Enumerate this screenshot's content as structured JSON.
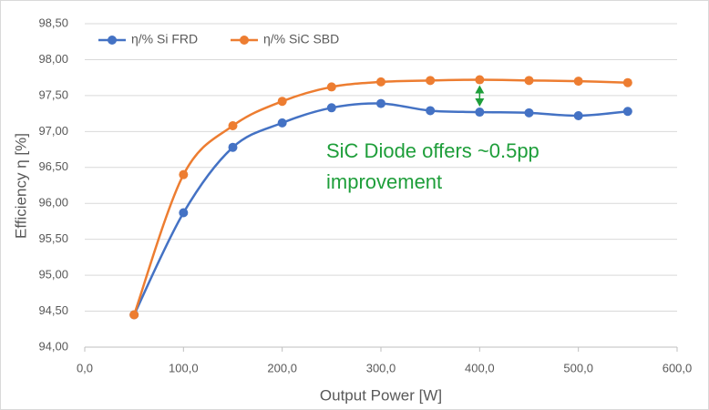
{
  "chart_data": {
    "type": "line",
    "x_label": "Output Power [W]",
    "y_label": "Efficiency η [%]",
    "x": [
      50,
      100,
      150,
      200,
      250,
      300,
      350,
      400,
      450,
      500,
      550
    ],
    "series": [
      {
        "name": "η/% Si FRD",
        "color": "#4472c4",
        "values": [
          94.45,
          95.87,
          96.78,
          97.12,
          97.33,
          97.39,
          97.29,
          97.27,
          97.26,
          97.22,
          97.28
        ]
      },
      {
        "name": "η/% SiC SBD",
        "color": "#ed7d31",
        "values": [
          94.45,
          96.4,
          97.08,
          97.42,
          97.62,
          97.69,
          97.71,
          97.72,
          97.71,
          97.7,
          97.68
        ]
      }
    ],
    "xlim": [
      0,
      600
    ],
    "xticks": [
      {
        "value": 0,
        "label": "0,0"
      },
      {
        "value": 100,
        "label": "100,0"
      },
      {
        "value": 200,
        "label": "200,0"
      },
      {
        "value": 300,
        "label": "300,0"
      },
      {
        "value": 400,
        "label": "400,0"
      },
      {
        "value": 500,
        "label": "500,0"
      },
      {
        "value": 600,
        "label": "600,0"
      }
    ],
    "ylim": [
      94,
      98.5
    ],
    "yticks": [
      {
        "value": 94,
        "label": "94,00"
      },
      {
        "value": 94.5,
        "label": "94,50"
      },
      {
        "value": 95,
        "label": "95,00"
      },
      {
        "value": 95.5,
        "label": "95,50"
      },
      {
        "value": 96,
        "label": "96,00"
      },
      {
        "value": 96.5,
        "label": "96,50"
      },
      {
        "value": 97,
        "label": "97,00"
      },
      {
        "value": 97.5,
        "label": "97,50"
      },
      {
        "value": 98,
        "label": "98,00"
      },
      {
        "value": 98.5,
        "label": "98,50"
      }
    ],
    "grid": true,
    "legend": "top-left",
    "annotation": [
      "SiC Diode offers ~0.5pp",
      "improvement"
    ]
  }
}
